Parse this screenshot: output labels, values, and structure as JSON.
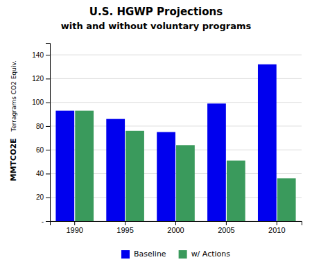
{
  "chart_data": {
    "type": "bar",
    "title": "U.S. HGWP Projections",
    "subtitle": "with and without voluntary programs",
    "ylabel": [
      "Terragrams CO2 Equiv.",
      "MMTCO2E"
    ],
    "categories": [
      "1990",
      "1995",
      "2000",
      "2005",
      "2010"
    ],
    "series": [
      {
        "name": "Baseline",
        "color": "#0000EE",
        "values": [
          93,
          86,
          75,
          99,
          132
        ]
      },
      {
        "name": "w/ Actions",
        "color": "#3A9A5C",
        "values": [
          93,
          76,
          64,
          51,
          36
        ]
      }
    ],
    "ylim": [
      0,
      150
    ],
    "yticks": [
      {
        "value": 0,
        "label": "-"
      },
      20,
      40,
      60,
      80,
      100,
      120,
      140
    ],
    "grid": true,
    "legend": "bottom"
  }
}
